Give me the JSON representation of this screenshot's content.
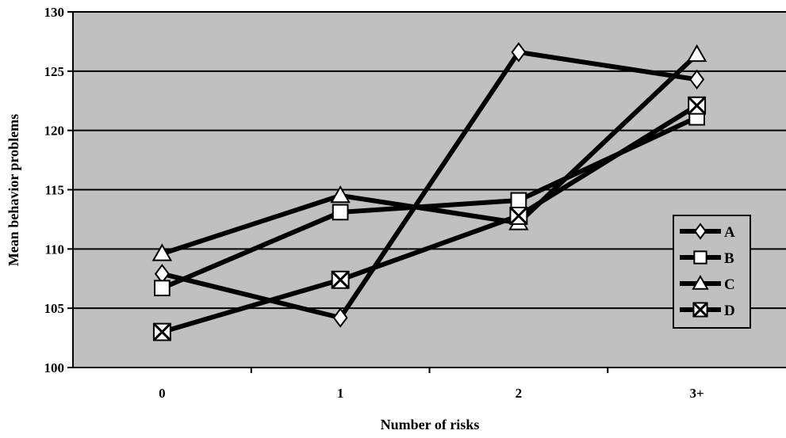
{
  "chart_data": {
    "type": "line",
    "title": "",
    "xlabel": "Number of risks",
    "ylabel": "Mean behavior problems",
    "categories": [
      "0",
      "1",
      "2",
      "3+"
    ],
    "ylim": [
      100,
      130
    ],
    "yticks": [
      100,
      105,
      110,
      115,
      120,
      125,
      130
    ],
    "grid": true,
    "plot_background": "#c0c0c0",
    "line_color": "#000000",
    "legend_position": "right",
    "series": [
      {
        "name": "A",
        "marker": "diamond",
        "values": [
          107.9,
          104.2,
          126.6,
          124.3
        ]
      },
      {
        "name": "B",
        "marker": "square",
        "values": [
          106.7,
          113.1,
          114.1,
          121.1
        ]
      },
      {
        "name": "C",
        "marker": "triangle",
        "values": [
          109.6,
          114.5,
          112.2,
          126.4
        ]
      },
      {
        "name": "D",
        "marker": "x-box",
        "values": [
          103.0,
          107.4,
          112.8,
          122.1
        ]
      }
    ]
  }
}
